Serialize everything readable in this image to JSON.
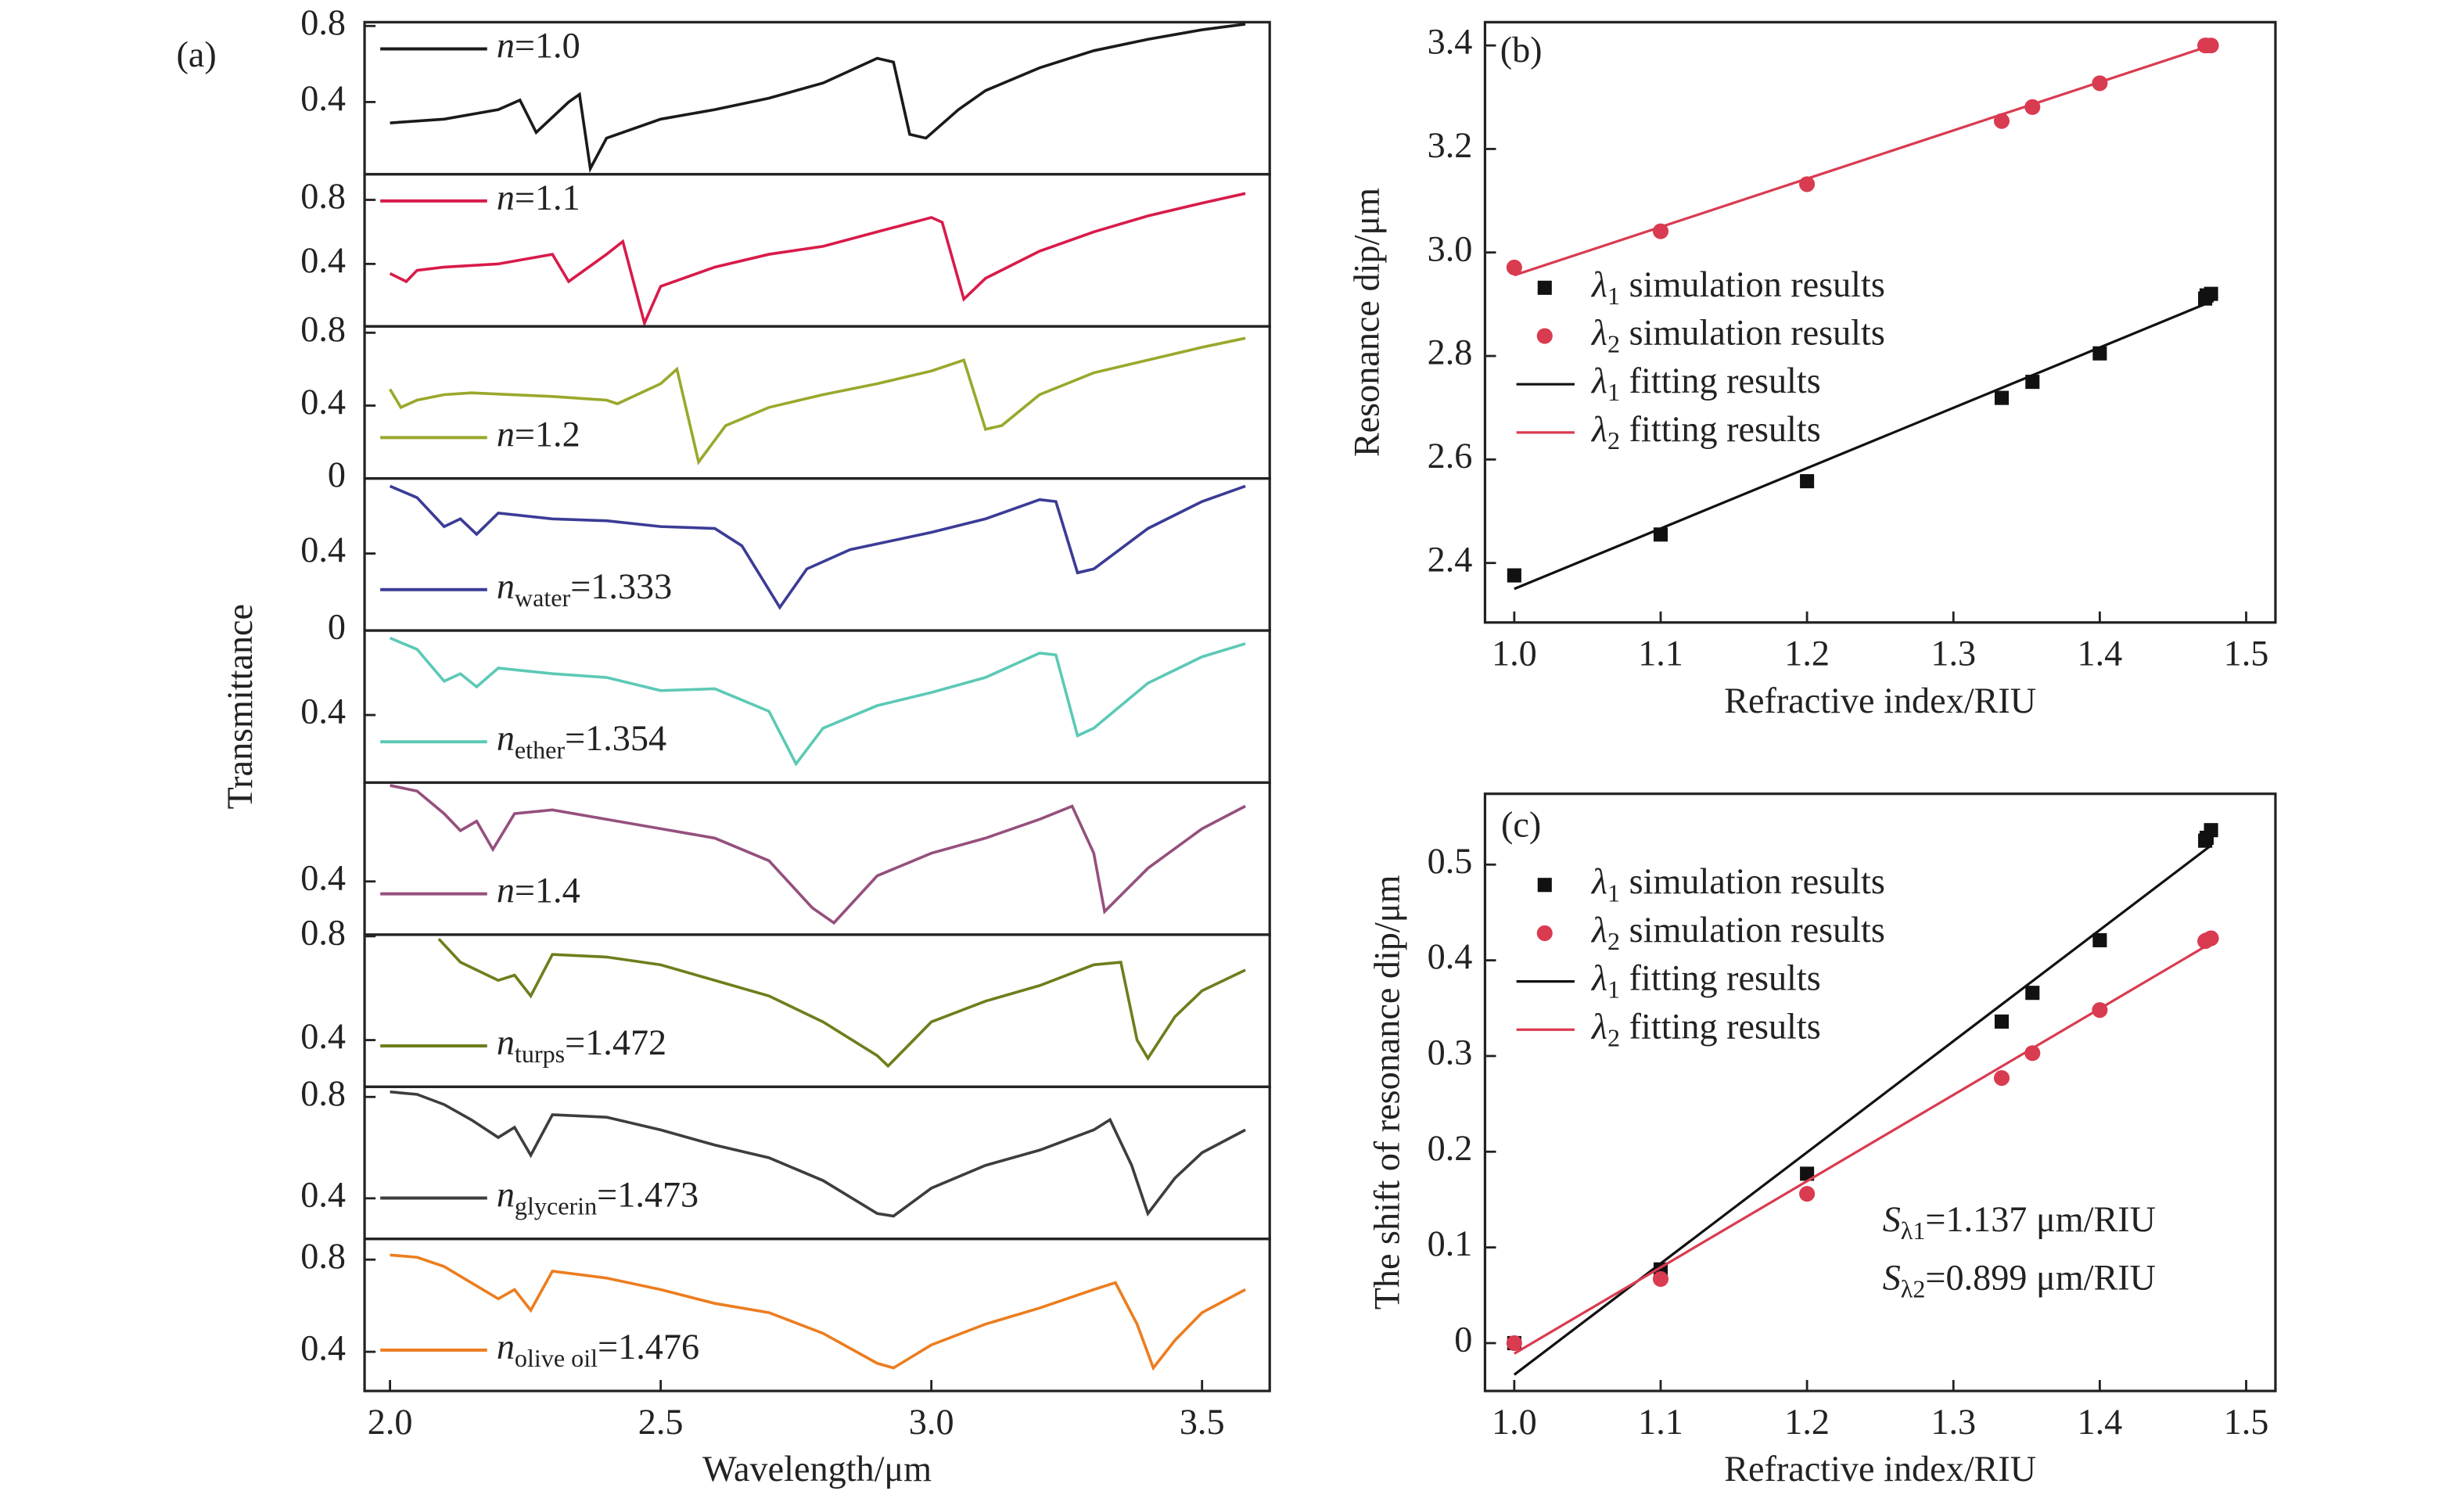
{
  "chart_data": [
    {
      "type": "line",
      "label": "(a)",
      "xlabel": "Wavelength/μm",
      "ylabel": "Transmittance",
      "xlim": [
        1.953,
        3.625
      ],
      "xticks": [
        {
          "value": 2,
          "label": "2.0"
        },
        2.5,
        {
          "value": 3,
          "label": "3.0"
        },
        3.5
      ],
      "subplots": [
        {
          "ylim": [
            0.02,
            0.82
          ],
          "yticks": [
            0.4,
            0.8
          ],
          "legend": "upper left",
          "x": [
            2.0,
            2.1,
            2.2,
            2.24,
            2.27,
            2.33,
            2.35,
            2.37,
            2.4,
            2.5,
            2.6,
            2.7,
            2.8,
            2.9,
            2.93,
            2.96,
            2.99,
            3.05,
            3.1,
            3.2,
            3.3,
            3.4,
            3.5,
            3.58
          ],
          "series": [
            {
              "name": {
                "symbol": "n",
                "text": "=1.0"
              },
              "color": "#1a1a1a",
              "values": [
                0.29,
                0.31,
                0.36,
                0.41,
                0.24,
                0.4,
                0.44,
                0.05,
                0.21,
                0.31,
                0.36,
                0.42,
                0.5,
                0.63,
                0.61,
                0.23,
                0.21,
                0.36,
                0.46,
                0.58,
                0.67,
                0.73,
                0.78,
                0.81
              ]
            }
          ]
        },
        {
          "ylim": [
            0.01,
            0.96
          ],
          "yticks": [
            0.4,
            0.8
          ],
          "legend": "upper left",
          "x": [
            2.0,
            2.03,
            2.05,
            2.1,
            2.2,
            2.3,
            2.33,
            2.4,
            2.43,
            2.47,
            2.5,
            2.6,
            2.7,
            2.8,
            2.9,
            3.0,
            3.02,
            3.06,
            3.1,
            3.2,
            3.3,
            3.4,
            3.5,
            3.58
          ],
          "series": [
            {
              "name": {
                "symbol": "n",
                "text": "=1.1"
              },
              "color": "#d81b4a",
              "values": [
                0.34,
                0.29,
                0.36,
                0.38,
                0.4,
                0.46,
                0.29,
                0.46,
                0.54,
                0.03,
                0.26,
                0.38,
                0.46,
                0.51,
                0.6,
                0.69,
                0.66,
                0.18,
                0.31,
                0.48,
                0.6,
                0.7,
                0.78,
                0.84
              ]
            }
          ]
        },
        {
          "ylim": [
            0,
            0.835
          ],
          "yticks": [
            0,
            0.4,
            0.8
          ],
          "legend": "lower left",
          "x": [
            2.0,
            2.02,
            2.05,
            2.1,
            2.15,
            2.3,
            2.4,
            2.42,
            2.5,
            2.53,
            2.57,
            2.62,
            2.7,
            2.8,
            2.9,
            3.0,
            3.06,
            3.1,
            3.13,
            3.2,
            3.3,
            3.4,
            3.5,
            3.58
          ],
          "series": [
            {
              "name": {
                "symbol": "n",
                "text": "=1.2"
              },
              "color": "#9aa82c",
              "values": [
                0.49,
                0.39,
                0.43,
                0.46,
                0.47,
                0.45,
                0.43,
                0.41,
                0.52,
                0.6,
                0.09,
                0.29,
                0.39,
                0.46,
                0.52,
                0.59,
                0.65,
                0.27,
                0.29,
                0.46,
                0.58,
                0.65,
                0.72,
                0.77
              ]
            }
          ]
        },
        {
          "ylim": [
            0,
            0.79
          ],
          "yticks": [
            0,
            0.4
          ],
          "legend": "lower left",
          "x": [
            2.0,
            2.05,
            2.1,
            2.13,
            2.16,
            2.2,
            2.3,
            2.4,
            2.5,
            2.6,
            2.65,
            2.72,
            2.77,
            2.85,
            3.0,
            3.1,
            3.2,
            3.23,
            3.27,
            3.3,
            3.4,
            3.5,
            3.58
          ],
          "series": [
            {
              "name": {
                "symbol": "n",
                "subscript": "water",
                "text": "=1.333"
              },
              "color": "#3b3b96",
              "values": [
                0.75,
                0.69,
                0.54,
                0.58,
                0.5,
                0.61,
                0.58,
                0.57,
                0.54,
                0.53,
                0.44,
                0.12,
                0.32,
                0.42,
                0.51,
                0.58,
                0.68,
                0.67,
                0.3,
                0.32,
                0.53,
                0.67,
                0.75
              ]
            }
          ]
        },
        {
          "ylim": [
            0.04,
            0.85
          ],
          "yticks": [
            0.4
          ],
          "legend": "lower left",
          "x": [
            2.0,
            2.05,
            2.1,
            2.13,
            2.16,
            2.2,
            2.3,
            2.4,
            2.5,
            2.6,
            2.7,
            2.75,
            2.8,
            2.9,
            3.0,
            3.1,
            3.2,
            3.23,
            3.27,
            3.3,
            3.4,
            3.5,
            3.58
          ],
          "series": [
            {
              "name": {
                "symbol": "n",
                "subscript": "ether",
                "text": "=1.354"
              },
              "color": "#5cc9b6",
              "values": [
                0.81,
                0.75,
                0.58,
                0.62,
                0.55,
                0.65,
                0.62,
                0.6,
                0.53,
                0.54,
                0.42,
                0.14,
                0.33,
                0.45,
                0.52,
                0.6,
                0.73,
                0.72,
                0.29,
                0.33,
                0.57,
                0.71,
                0.78
              ]
            }
          ]
        },
        {
          "ylim": [
            0.117,
            0.925
          ],
          "yticks": [
            0.4
          ],
          "legend": "lower left",
          "x": [
            2.0,
            2.05,
            2.1,
            2.13,
            2.16,
            2.19,
            2.23,
            2.3,
            2.4,
            2.5,
            2.6,
            2.7,
            2.78,
            2.82,
            2.9,
            3.0,
            3.1,
            3.2,
            3.26,
            3.3,
            3.32,
            3.4,
            3.5,
            3.58
          ],
          "series": [
            {
              "name": {
                "symbol": "n",
                "text": "=1.4"
              },
              "color": "#95507c",
              "values": [
                0.91,
                0.88,
                0.76,
                0.67,
                0.72,
                0.57,
                0.76,
                0.78,
                0.73,
                0.68,
                0.63,
                0.51,
                0.26,
                0.18,
                0.43,
                0.55,
                0.63,
                0.73,
                0.8,
                0.55,
                0.24,
                0.47,
                0.68,
                0.8
              ]
            }
          ]
        },
        {
          "ylim": [
            0.22,
            0.806
          ],
          "yticks": [
            0.4,
            0.8
          ],
          "legend": "lower left",
          "x": [
            2.09,
            2.13,
            2.2,
            2.23,
            2.26,
            2.3,
            2.4,
            2.5,
            2.6,
            2.7,
            2.8,
            2.9,
            2.92,
            3.0,
            3.1,
            3.2,
            3.3,
            3.35,
            3.38,
            3.4,
            3.45,
            3.5,
            3.58
          ],
          "series": [
            {
              "name": {
                "symbol": "n",
                "subscript": "turps",
                "text": "=1.472"
              },
              "color": "#6f7d1c",
              "values": [
                0.79,
                0.7,
                0.63,
                0.65,
                0.57,
                0.73,
                0.72,
                0.69,
                0.63,
                0.57,
                0.47,
                0.34,
                0.3,
                0.47,
                0.55,
                0.61,
                0.69,
                0.7,
                0.4,
                0.33,
                0.49,
                0.59,
                0.67
              ]
            }
          ]
        },
        {
          "ylim": [
            0.24,
            0.84
          ],
          "yticks": [
            0.4,
            0.8
          ],
          "legend": "lower left",
          "x": [
            2.0,
            2.05,
            2.1,
            2.15,
            2.2,
            2.23,
            2.26,
            2.3,
            2.4,
            2.5,
            2.6,
            2.7,
            2.8,
            2.9,
            2.93,
            3.0,
            3.1,
            3.2,
            3.3,
            3.33,
            3.37,
            3.4,
            3.45,
            3.5,
            3.58
          ],
          "series": [
            {
              "name": {
                "symbol": "n",
                "subscript": "glycerin",
                "text": "=1.473"
              },
              "color": "#3d3d3d",
              "values": [
                0.82,
                0.81,
                0.77,
                0.71,
                0.64,
                0.68,
                0.57,
                0.73,
                0.72,
                0.67,
                0.61,
                0.56,
                0.47,
                0.34,
                0.33,
                0.44,
                0.53,
                0.59,
                0.67,
                0.71,
                0.53,
                0.34,
                0.48,
                0.58,
                0.67
              ]
            }
          ]
        },
        {
          "ylim": [
            0.23,
            0.89
          ],
          "yticks": [
            0.4,
            0.8
          ],
          "legend": "lower left",
          "x": [
            2.0,
            2.05,
            2.1,
            2.15,
            2.2,
            2.23,
            2.26,
            2.3,
            2.4,
            2.5,
            2.6,
            2.7,
            2.8,
            2.9,
            2.93,
            3.0,
            3.1,
            3.2,
            3.3,
            3.34,
            3.38,
            3.41,
            3.45,
            3.5,
            3.58
          ],
          "series": [
            {
              "name": {
                "symbol": "n",
                "subscript": "olive oil",
                "text": "=1.476"
              },
              "color": "#ec7d1f",
              "values": [
                0.82,
                0.81,
                0.77,
                0.7,
                0.63,
                0.67,
                0.58,
                0.75,
                0.72,
                0.67,
                0.61,
                0.57,
                0.48,
                0.35,
                0.33,
                0.43,
                0.52,
                0.59,
                0.67,
                0.7,
                0.52,
                0.33,
                0.45,
                0.57,
                0.67
              ]
            }
          ]
        }
      ]
    },
    {
      "type": "scatter",
      "label": "(b)",
      "xlabel": "Refractive index/RIU",
      "ylabel": "Resonance dip/μm",
      "xlim": [
        0.98,
        1.52
      ],
      "ylim": [
        2.285,
        3.445
      ],
      "xticks": [
        {
          "value": 1,
          "label": "1.0"
        },
        1.1,
        1.2,
        1.3,
        1.4,
        1.5
      ],
      "yticks": [
        2.4,
        2.6,
        2.8,
        {
          "value": 3,
          "label": "3.0"
        },
        3.2,
        3.4
      ],
      "legend": "center left",
      "series": [
        {
          "name": {
            "symbol": "λ",
            "subscript": "1",
            "text": " simulation results"
          },
          "kind": "scatter",
          "marker": "square",
          "color": "#111111",
          "x": [
            1.0,
            1.1,
            1.2,
            1.333,
            1.354,
            1.4,
            1.472,
            1.473,
            1.476
          ],
          "values": [
            2.376,
            2.455,
            2.558,
            2.719,
            2.75,
            2.805,
            2.911,
            2.917,
            2.92
          ]
        },
        {
          "name": {
            "symbol": "λ",
            "subscript": "2",
            "text": " simulation results"
          },
          "kind": "scatter",
          "marker": "circle",
          "color": "#d93b50",
          "x": [
            1.0,
            1.1,
            1.2,
            1.333,
            1.354,
            1.4,
            1.472,
            1.473,
            1.476
          ],
          "values": [
            2.971,
            3.041,
            3.132,
            3.254,
            3.281,
            3.327,
            3.4,
            3.4,
            3.4
          ]
        },
        {
          "name": {
            "symbol": "λ",
            "subscript": "1",
            "text": " fitting results"
          },
          "kind": "line",
          "color": "#111111",
          "x": [
            1.0,
            1.476
          ],
          "values": [
            2.35,
            2.905
          ]
        },
        {
          "name": {
            "symbol": "λ",
            "subscript": "2",
            "text": " fitting results"
          },
          "kind": "line",
          "color": "#d93b50",
          "x": [
            1.0,
            1.476
          ],
          "values": [
            2.956,
            3.4
          ]
        }
      ]
    },
    {
      "type": "scatter",
      "label": "(c)",
      "xlabel": "Refractive index/RIU",
      "ylabel": "The shift of resonance dip/μm",
      "xlim": [
        0.98,
        1.52
      ],
      "ylim": [
        -0.05,
        0.574
      ],
      "xticks": [
        {
          "value": 1,
          "label": "1.0"
        },
        1.1,
        1.2,
        1.3,
        1.4,
        1.5
      ],
      "yticks": [
        0,
        0.1,
        0.2,
        0.3,
        0.4,
        0.5
      ],
      "legend": "upper left",
      "series": [
        {
          "name": {
            "symbol": "λ",
            "subscript": "1",
            "text": " simulation results"
          },
          "kind": "scatter",
          "marker": "square",
          "color": "#111111",
          "x": [
            1.0,
            1.1,
            1.2,
            1.333,
            1.354,
            1.4,
            1.472,
            1.473,
            1.476
          ],
          "values": [
            0,
            0.077,
            0.177,
            0.336,
            0.366,
            0.421,
            0.525,
            0.528,
            0.536
          ]
        },
        {
          "name": {
            "symbol": "λ",
            "subscript": "2",
            "text": " simulation results"
          },
          "kind": "scatter",
          "marker": "circle",
          "color": "#d93b50",
          "x": [
            1.0,
            1.1,
            1.2,
            1.333,
            1.354,
            1.4,
            1.472,
            1.473,
            1.476
          ],
          "values": [
            0,
            0.067,
            0.156,
            0.277,
            0.303,
            0.348,
            0.42,
            0.421,
            0.423
          ]
        },
        {
          "name": {
            "symbol": "λ",
            "subscript": "1",
            "text": " fitting results"
          },
          "kind": "line",
          "color": "#111111",
          "x": [
            1.0,
            1.476
          ],
          "values": [
            -0.033,
            0.52
          ]
        },
        {
          "name": {
            "symbol": "λ",
            "subscript": "2",
            "text": " fitting results"
          },
          "kind": "line",
          "color": "#d93b50",
          "x": [
            1.0,
            1.476
          ],
          "values": [
            -0.011,
            0.418
          ]
        }
      ],
      "annotations": [
        {
          "symbol": "S",
          "subscript": "λ1",
          "text": "=1.137 μm/RIU"
        },
        {
          "symbol": "S",
          "subscript": "λ2",
          "text": "=0.899 μm/RIU"
        }
      ]
    }
  ]
}
